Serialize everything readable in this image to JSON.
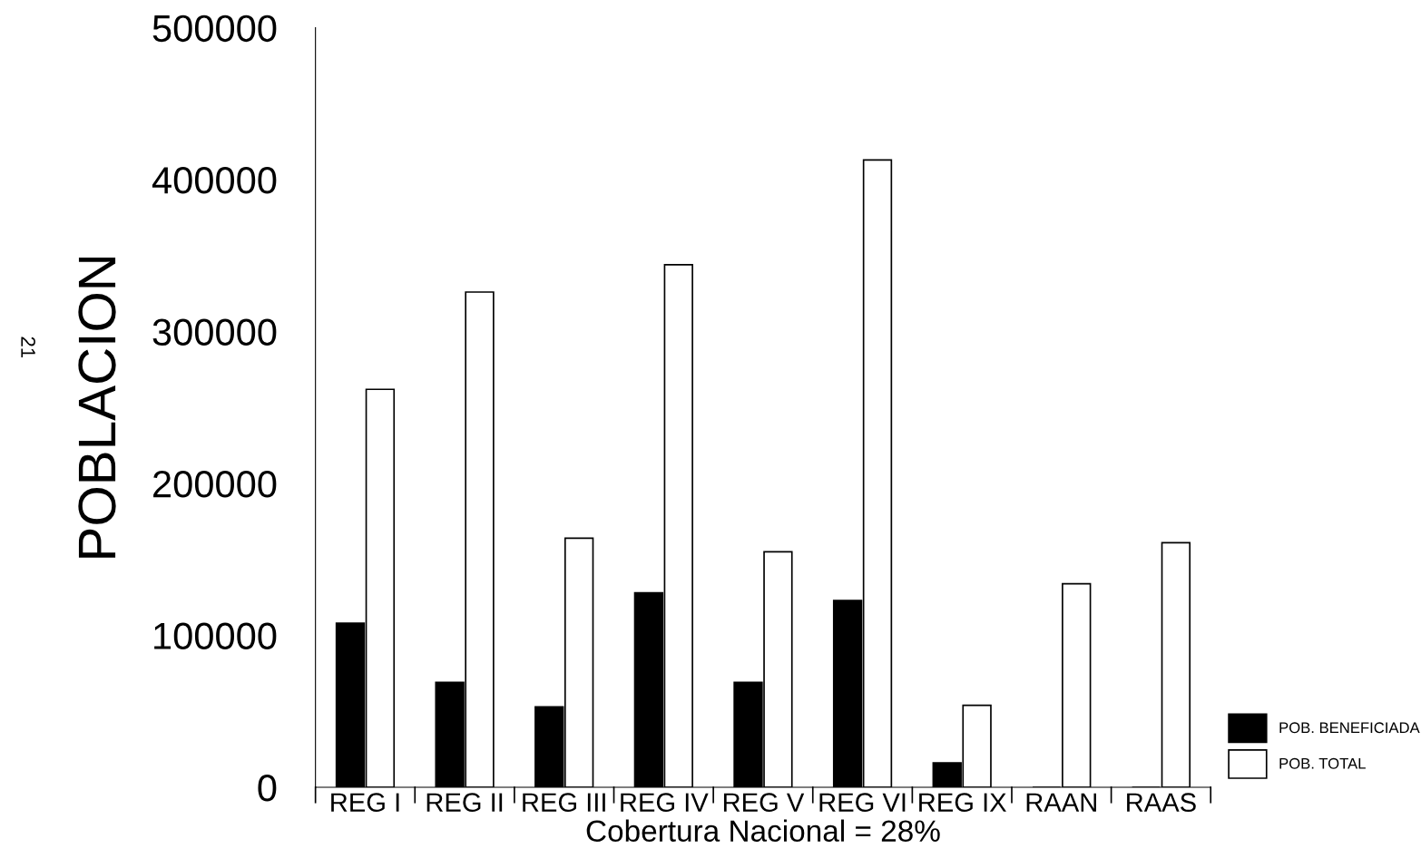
{
  "chart_data": {
    "type": "bar",
    "xlabel": "Cobertura Nacional = 28%",
    "ylabel": "POBLACION",
    "categories": [
      "REG I",
      "REG II",
      "REG III",
      "REG IV",
      "REG V",
      "REG VI",
      "REG IX",
      "RAAN",
      "RAAS"
    ],
    "series": [
      {
        "name": "POB. BENEFICIADA",
        "color": "#000000",
        "values": [
          108000,
          69000,
          53000,
          128000,
          69000,
          123000,
          16000,
          0,
          0
        ]
      },
      {
        "name": "POB. TOTAL",
        "color": "#ffffff",
        "values": [
          262000,
          326000,
          164000,
          344000,
          155000,
          413000,
          54000,
          134000,
          161000
        ]
      }
    ],
    "ylim": [
      0,
      500000
    ],
    "yticks": [
      0,
      100000,
      200000,
      300000,
      400000,
      500000
    ],
    "grid": false,
    "legend": "right",
    "annotations": [
      "21"
    ]
  }
}
